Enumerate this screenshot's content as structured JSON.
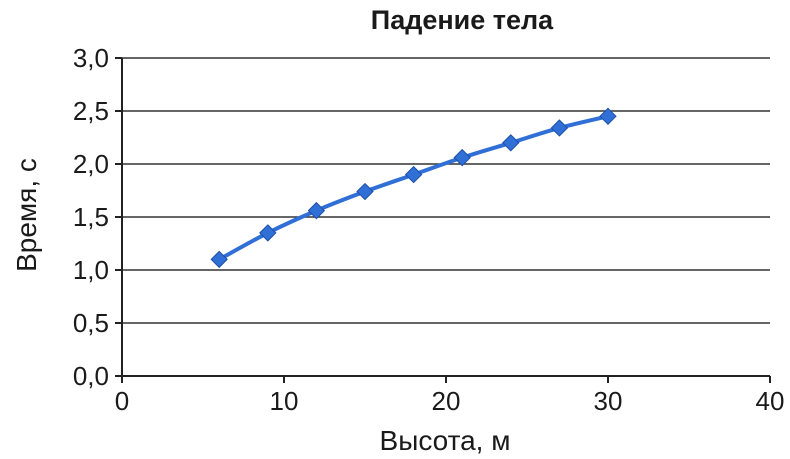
{
  "chart_data": {
    "type": "line",
    "title": "Падение тела",
    "xlabel": "Высота, м",
    "ylabel": "Время, с",
    "xlim": [
      0,
      40
    ],
    "ylim": [
      0,
      3
    ],
    "x_ticks": [
      0,
      10,
      20,
      30,
      40
    ],
    "y_ticks": [
      0,
      0.5,
      1.0,
      1.5,
      2.0,
      2.5,
      3.0
    ],
    "x_tick_labels": [
      "0",
      "10",
      "20",
      "30",
      "40"
    ],
    "y_tick_labels": [
      "0,0",
      "0,5",
      "1,0",
      "1,5",
      "2,0",
      "2,5",
      "3,0"
    ],
    "grid": true,
    "legend": "none",
    "series": [
      {
        "color": "#2f6fd6",
        "marker": "diamond",
        "x": [
          6,
          9,
          12,
          15,
          18,
          21,
          24,
          27,
          30
        ],
        "y": [
          1.1,
          1.35,
          1.56,
          1.74,
          1.9,
          2.06,
          2.2,
          2.34,
          2.45
        ]
      }
    ]
  }
}
